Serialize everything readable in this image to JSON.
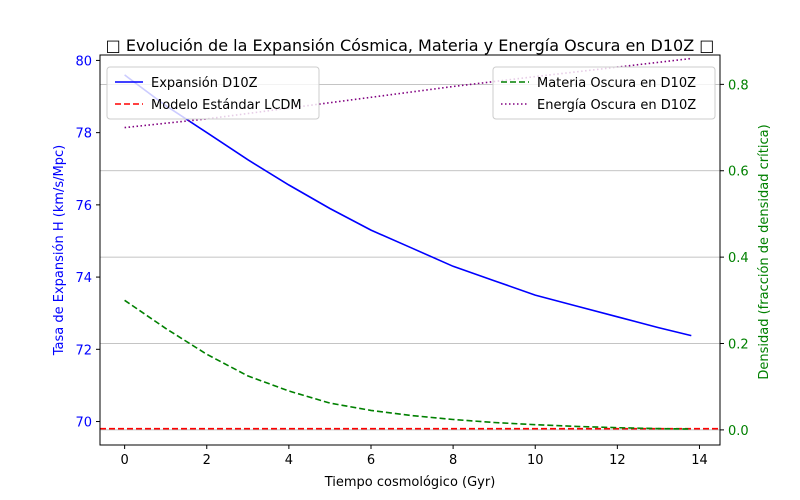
{
  "chart_data": {
    "type": "line",
    "title": "□ Evolución de la Expansión Cósmica, Materia y Energía Oscura en D10Z □",
    "xlabel": "Tiempo cosmológico (Gyr)",
    "ylabel_left": "Tasa de Expansión H (km/s/Mpc)",
    "ylabel_right": "Densidad (fracción de densidad crítica)",
    "xlim": [
      -0.6,
      14.5
    ],
    "ylim_left": [
      69.35,
      80.15
    ],
    "ylim_right": [
      -0.035,
      0.868
    ],
    "x_ticks": [
      0,
      2,
      4,
      6,
      8,
      10,
      12,
      14
    ],
    "y_ticks_left": [
      70,
      72,
      74,
      76,
      78,
      80
    ],
    "y_ticks_right": [
      0.0,
      0.2,
      0.4,
      0.6,
      0.8
    ],
    "grid": "horizontal",
    "colors": {
      "left_axis": "#0000ff",
      "right_axis": "#008000"
    },
    "legends": [
      {
        "placement": "upper-left",
        "entries": [
          "Expansión D10Z",
          "Modelo Estándar LCDM"
        ]
      },
      {
        "placement": "upper-right",
        "entries": [
          "Materia Oscura en D10Z",
          "Energía Oscura en D10Z"
        ]
      }
    ],
    "series": [
      {
        "name": "Expansión D10Z",
        "axis": "left",
        "color": "#0000ff",
        "style": "solid",
        "x": [
          0,
          1,
          2,
          3,
          4,
          5,
          6,
          7,
          8,
          9,
          10,
          11,
          12,
          13,
          13.8
        ],
        "values": [
          79.6,
          78.75,
          78.0,
          77.25,
          76.55,
          75.9,
          75.3,
          74.8,
          74.3,
          73.9,
          73.5,
          73.2,
          72.9,
          72.6,
          72.38
        ]
      },
      {
        "name": "Modelo Estándar LCDM",
        "axis": "left",
        "color": "#ff0000",
        "style": "dashed",
        "x": [
          -0.6,
          14.5
        ],
        "values": [
          69.8,
          69.8
        ]
      },
      {
        "name": "Materia Oscura en D10Z",
        "axis": "right",
        "color": "#008000",
        "style": "dashed",
        "x": [
          0,
          1,
          2,
          3,
          4,
          5,
          6,
          7,
          8,
          9,
          10,
          11,
          12,
          13,
          13.8
        ],
        "values": [
          0.3,
          0.235,
          0.175,
          0.125,
          0.09,
          0.062,
          0.045,
          0.033,
          0.024,
          0.017,
          0.012,
          0.008,
          0.005,
          0.003,
          0.002
        ]
      },
      {
        "name": "Energía Oscura en D10Z",
        "axis": "right",
        "color": "#800080",
        "style": "dotted",
        "x": [
          0,
          2,
          4,
          6,
          8,
          10,
          12,
          13.8
        ],
        "values": [
          0.7,
          0.72,
          0.745,
          0.77,
          0.795,
          0.818,
          0.84,
          0.86
        ]
      }
    ]
  }
}
